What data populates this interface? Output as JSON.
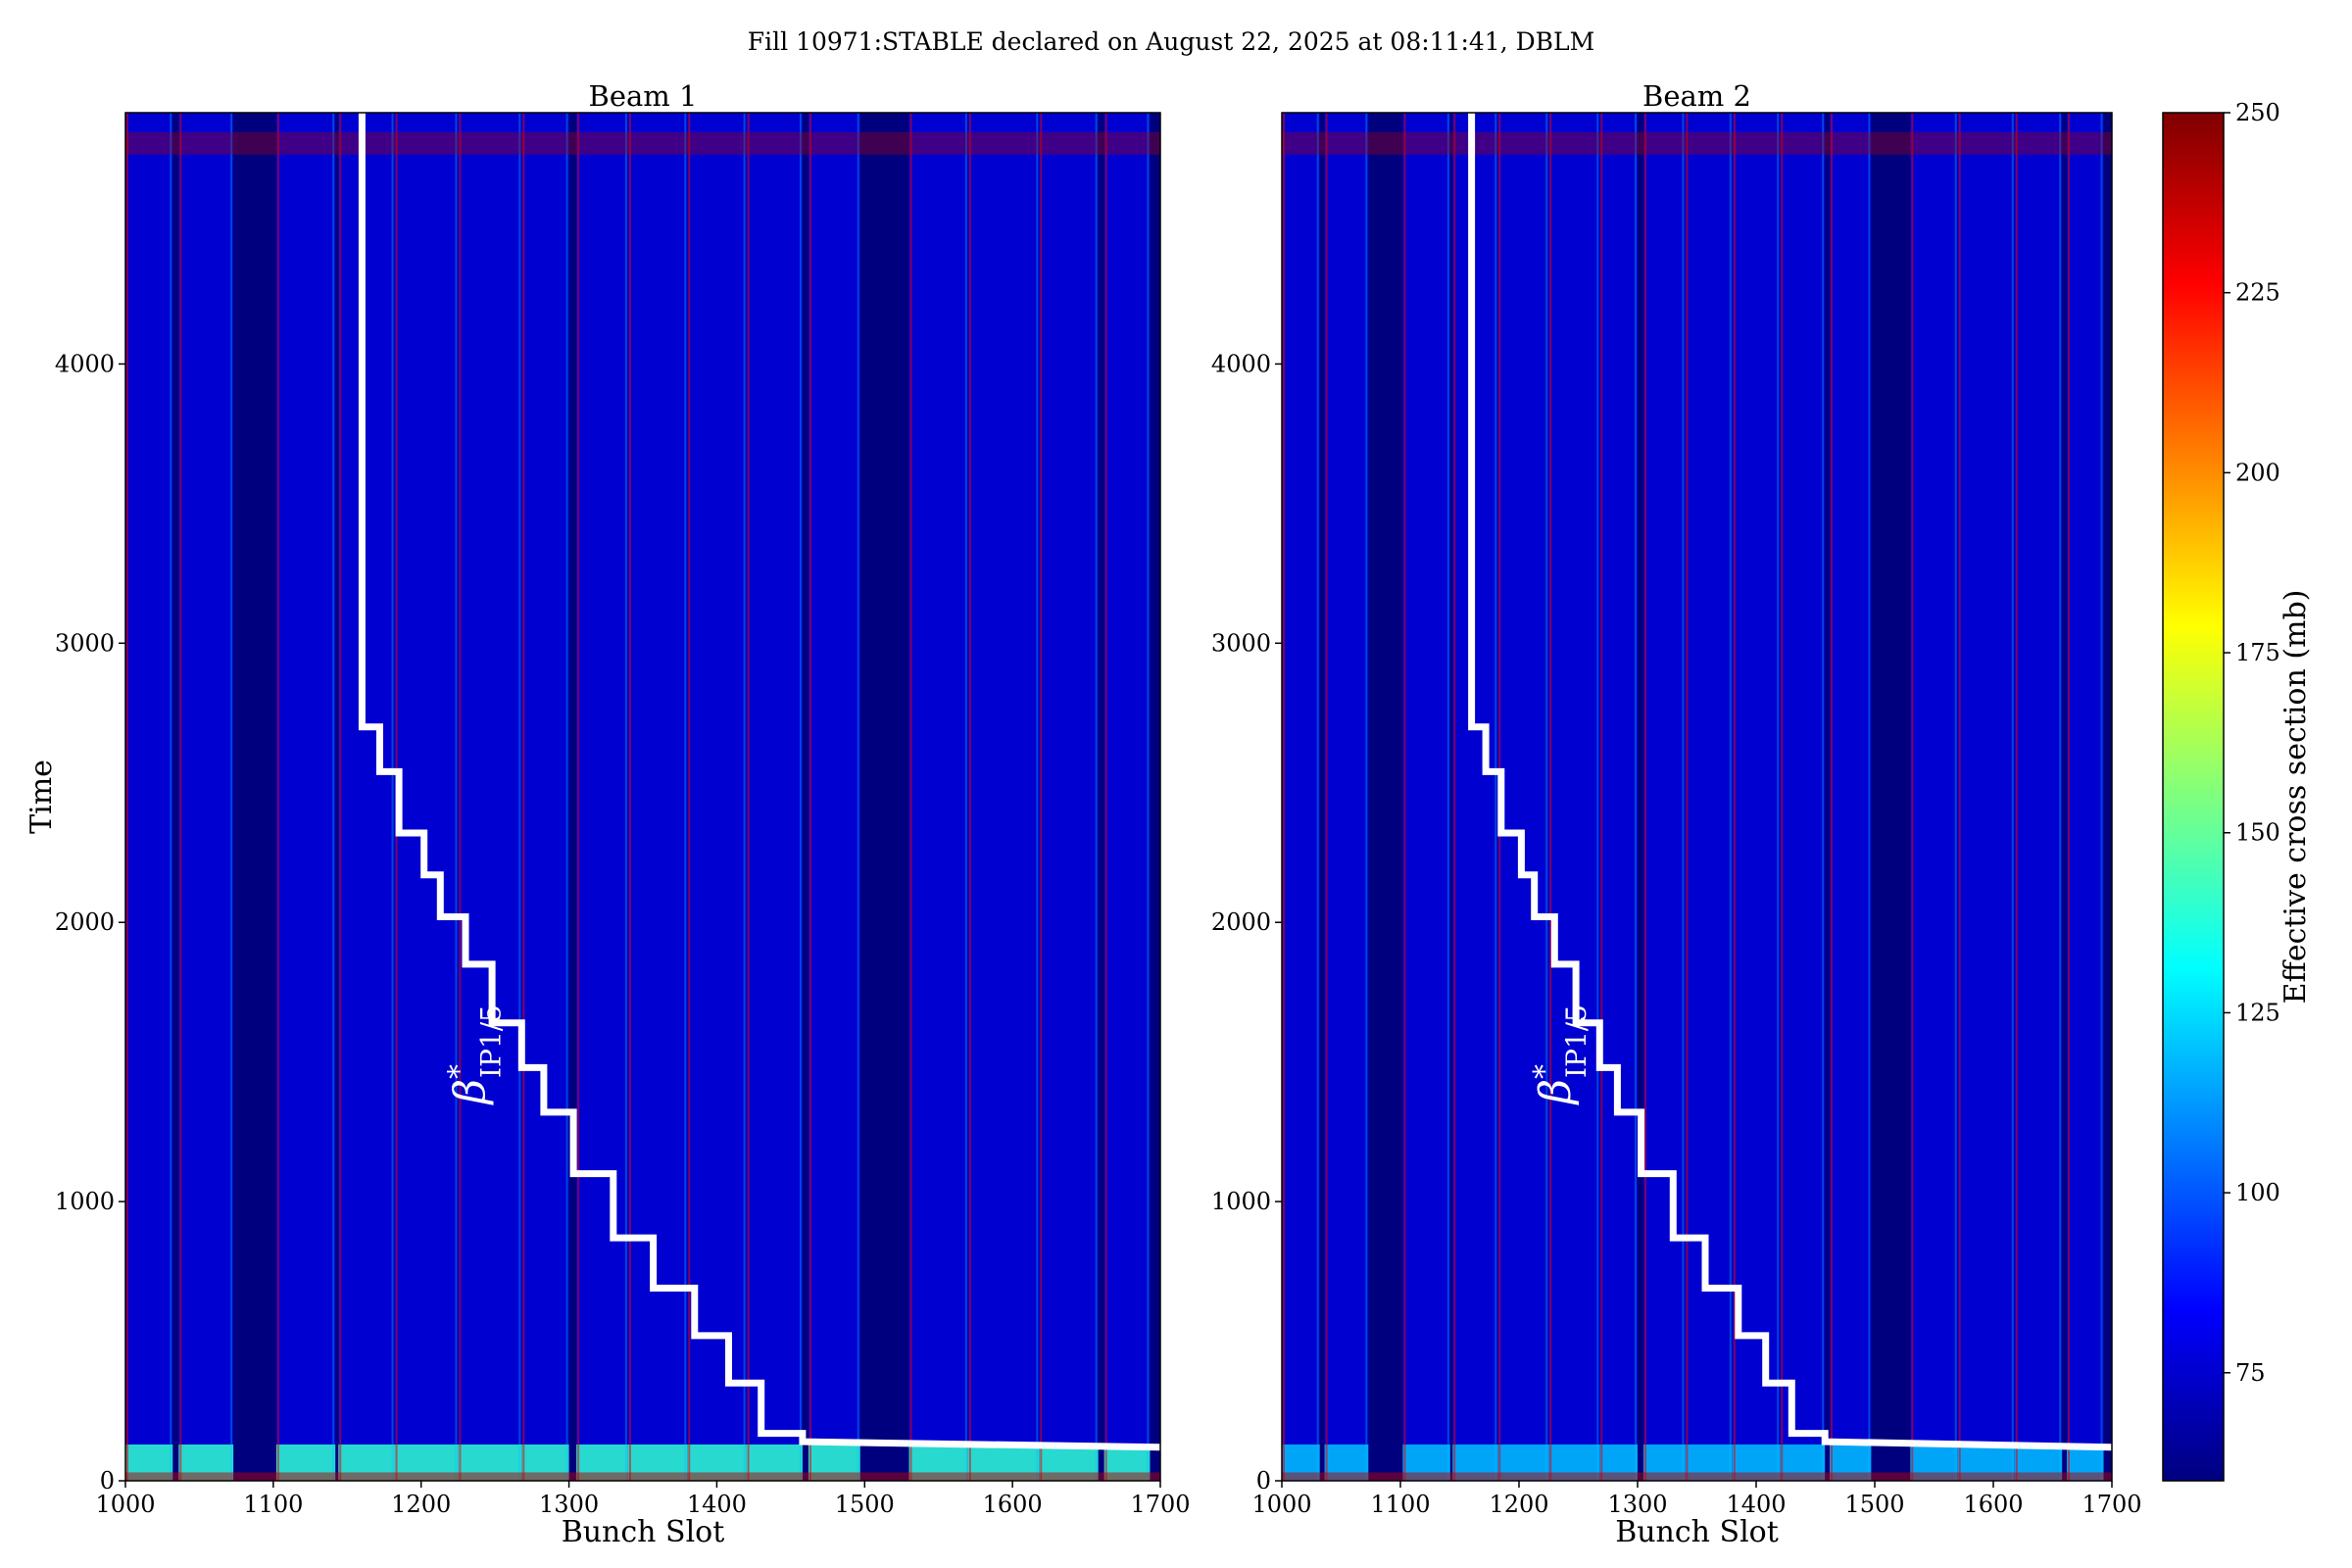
{
  "figure": {
    "title": "Fill 10971:STABLE declared on August 22, 2025 at 08:11:41, DBLM"
  },
  "colorbar": {
    "label": "Effective cross section (mb)",
    "min": 60,
    "max": 250,
    "ticks": [
      75,
      100,
      125,
      150,
      175,
      200,
      225,
      250
    ],
    "colormap": [
      "#00007f",
      "#0000ff",
      "#007fff",
      "#00ffff",
      "#7fff7f",
      "#ffff00",
      "#ff7f00",
      "#ff0000",
      "#7f0000"
    ]
  },
  "chart_data": [
    {
      "type": "heatmap",
      "title": "Beam 1",
      "xlabel": "Bunch Slot",
      "ylabel": "Time",
      "xlim": [
        1000,
        1700
      ],
      "ylim": [
        0,
        4900
      ],
      "xticks": [
        1000,
        1100,
        1200,
        1300,
        1400,
        1500,
        1600,
        1700
      ],
      "yticks": [
        0,
        1000,
        2000,
        3000,
        4000
      ],
      "empty_slot_ranges": [
        [
          1032,
          1036
        ],
        [
          1073,
          1102
        ],
        [
          1142,
          1144
        ],
        [
          1300,
          1305
        ],
        [
          1458,
          1462
        ],
        [
          1497,
          1530
        ],
        [
          1658,
          1662
        ],
        [
          1693,
          1700
        ]
      ],
      "filled_bunch_trains": [
        [
          1000,
          1032
        ],
        [
          1036,
          1073
        ],
        [
          1102,
          1142
        ],
        [
          1144,
          1182
        ],
        [
          1182,
          1225
        ],
        [
          1225,
          1268
        ],
        [
          1268,
          1300
        ],
        [
          1305,
          1340
        ],
        [
          1340,
          1380
        ],
        [
          1380,
          1420
        ],
        [
          1420,
          1458
        ],
        [
          1462,
          1497
        ],
        [
          1530,
          1570
        ],
        [
          1570,
          1618
        ],
        [
          1618,
          1658
        ],
        [
          1662,
          1693
        ]
      ],
      "typical_value_mb": 75,
      "early_fill_value_mb": 140,
      "early_fill_time_range": [
        0,
        130
      ],
      "overlay_label": "β*IP1/5",
      "overlay_step_line": {
        "x": [
          1160,
          1160,
          1172,
          1172,
          1185,
          1185,
          1202,
          1202,
          1213,
          1213,
          1230,
          1230,
          1248,
          1248,
          1268,
          1268,
          1283,
          1283,
          1303,
          1303,
          1330,
          1330,
          1357,
          1357,
          1385,
          1385,
          1408,
          1408,
          1430,
          1430,
          1458,
          1458,
          1700
        ],
        "y": [
          4900,
          2700,
          2700,
          2540,
          2540,
          2320,
          2320,
          2170,
          2170,
          2020,
          2020,
          1850,
          1850,
          1640,
          1640,
          1480,
          1480,
          1320,
          1320,
          1100,
          1100,
          870,
          870,
          690,
          690,
          520,
          520,
          350,
          350,
          170,
          170,
          140,
          120
        ]
      }
    },
    {
      "type": "heatmap",
      "title": "Beam 2",
      "xlabel": "Bunch Slot",
      "ylabel": "",
      "xlim": [
        1000,
        1700
      ],
      "ylim": [
        0,
        4900
      ],
      "xticks": [
        1000,
        1100,
        1200,
        1300,
        1400,
        1500,
        1600,
        1700
      ],
      "yticks": [
        0,
        1000,
        2000,
        3000,
        4000
      ],
      "empty_slot_ranges": [
        [
          1032,
          1036
        ],
        [
          1073,
          1102
        ],
        [
          1142,
          1144
        ],
        [
          1300,
          1305
        ],
        [
          1458,
          1462
        ],
        [
          1497,
          1530
        ],
        [
          1658,
          1662
        ],
        [
          1693,
          1700
        ]
      ],
      "filled_bunch_trains": [
        [
          1000,
          1032
        ],
        [
          1036,
          1073
        ],
        [
          1102,
          1142
        ],
        [
          1144,
          1182
        ],
        [
          1182,
          1225
        ],
        [
          1225,
          1268
        ],
        [
          1268,
          1300
        ],
        [
          1305,
          1340
        ],
        [
          1340,
          1380
        ],
        [
          1380,
          1420
        ],
        [
          1420,
          1458
        ],
        [
          1462,
          1497
        ],
        [
          1530,
          1570
        ],
        [
          1570,
          1618
        ],
        [
          1618,
          1658
        ],
        [
          1662,
          1693
        ]
      ],
      "typical_value_mb": 75,
      "early_fill_value_mb": 120,
      "early_fill_time_range": [
        0,
        130
      ],
      "overlay_label": "β*IP1/5",
      "overlay_step_line": {
        "x": [
          1160,
          1160,
          1172,
          1172,
          1185,
          1185,
          1202,
          1202,
          1213,
          1213,
          1230,
          1230,
          1248,
          1248,
          1268,
          1268,
          1283,
          1283,
          1303,
          1303,
          1330,
          1330,
          1357,
          1357,
          1385,
          1385,
          1408,
          1408,
          1430,
          1430,
          1458,
          1458,
          1700
        ],
        "y": [
          4900,
          2700,
          2700,
          2540,
          2540,
          2320,
          2320,
          2170,
          2170,
          2020,
          2020,
          1850,
          1850,
          1640,
          1640,
          1480,
          1480,
          1320,
          1320,
          1100,
          1100,
          870,
          870,
          690,
          690,
          520,
          520,
          350,
          350,
          170,
          170,
          140,
          120
        ]
      }
    }
  ]
}
